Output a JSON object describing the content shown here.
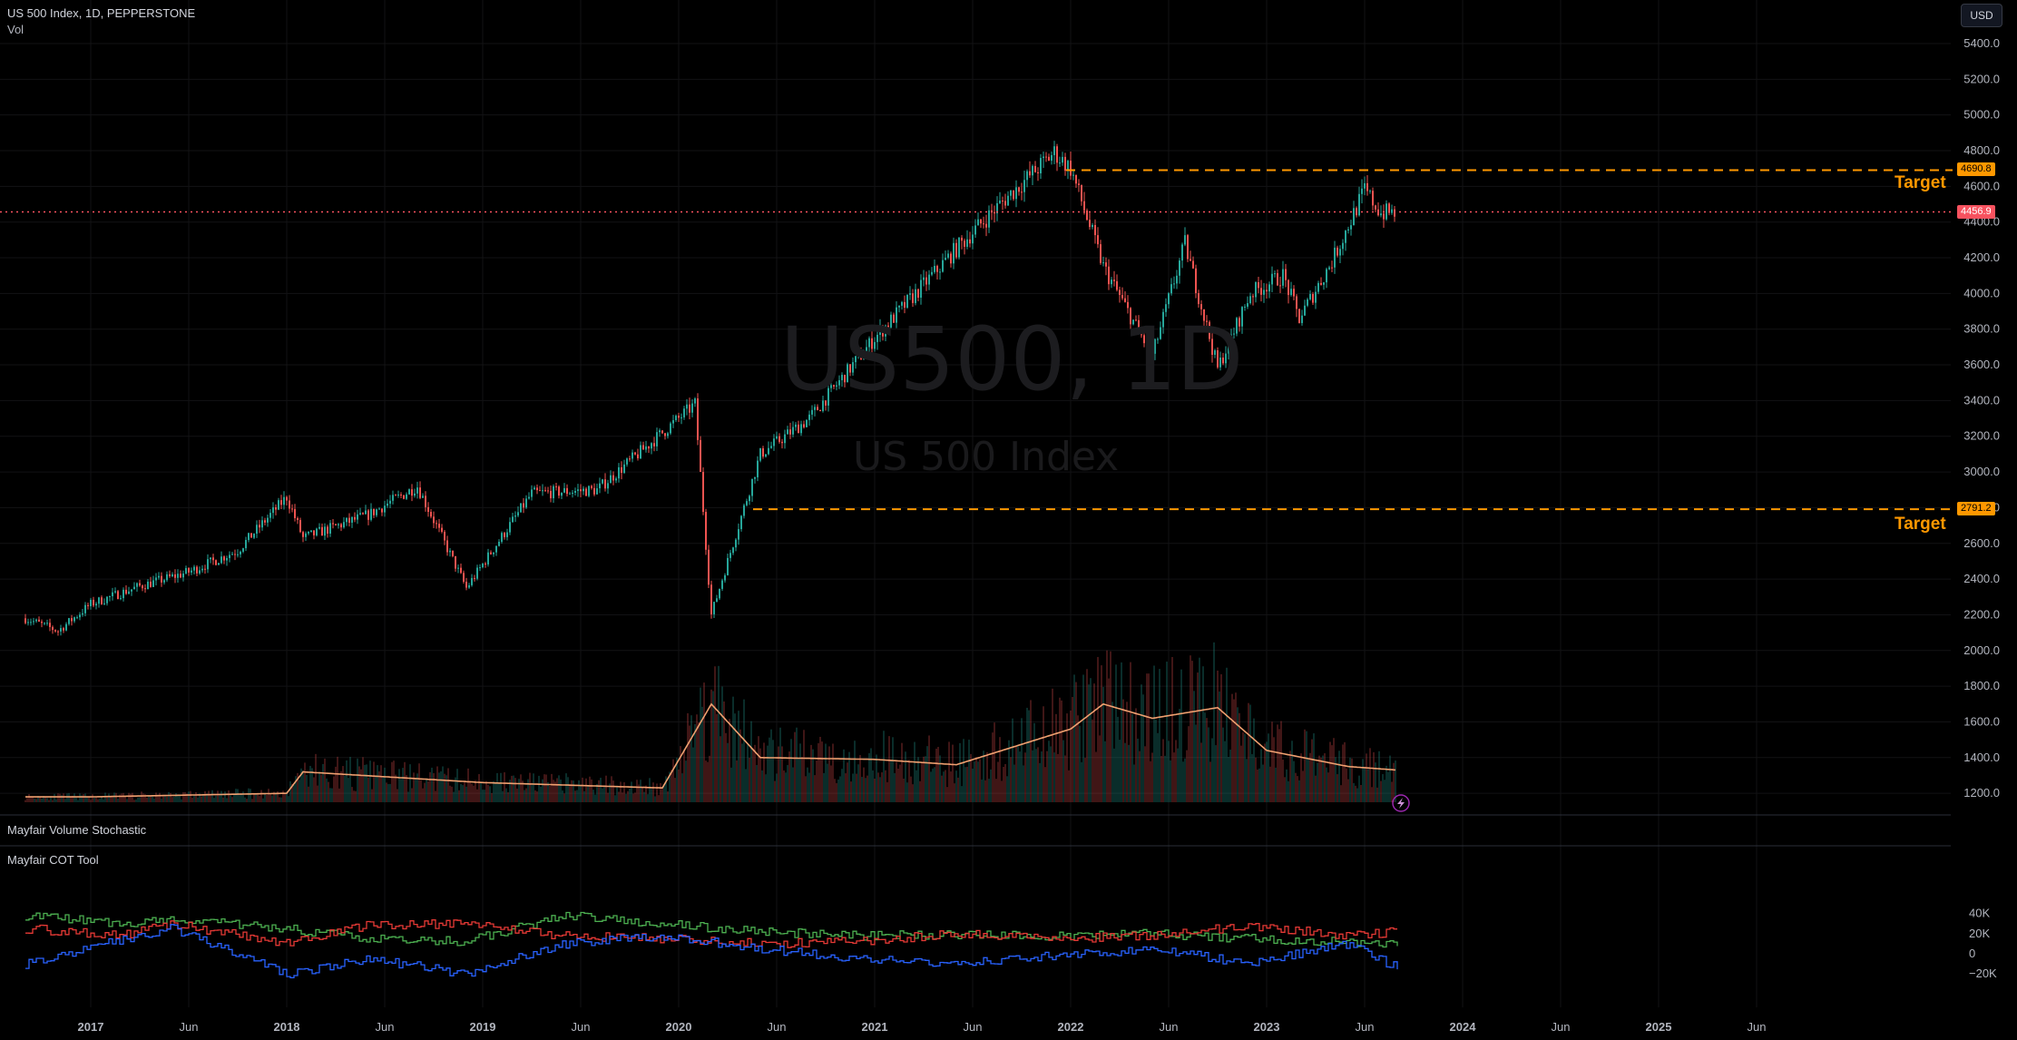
{
  "header": {
    "symbol_line": "US 500 Index, 1D, PEPPERSTONE",
    "volume_label": "Vol",
    "currency": "USD"
  },
  "watermark": {
    "main": "US500, 1D",
    "sub": "US 500 Index"
  },
  "price_axis": {
    "ticks": [
      "5400.0",
      "5200.0",
      "5000.0",
      "4800.0",
      "4600.0",
      "4400.0",
      "4200.0",
      "4000.0",
      "3800.0",
      "3600.0",
      "3400.0",
      "3200.0",
      "3000.0",
      "2800.0",
      "2600.0",
      "2400.0",
      "2200.0",
      "2000.0",
      "1800.0",
      "1600.0",
      "1400.0",
      "1200.0"
    ]
  },
  "time_axis": {
    "ticks": [
      "2017",
      "Jun",
      "2018",
      "Jun",
      "2019",
      "Jun",
      "2020",
      "Jun",
      "2021",
      "Jun",
      "2022",
      "Jun",
      "2023",
      "Jun",
      "2024",
      "Jun",
      "2025",
      "Jun"
    ]
  },
  "levels": {
    "upper_target": {
      "value": 4690.8,
      "label": "4690.8",
      "text": "Target"
    },
    "lower_target": {
      "value": 2791.2,
      "label": "2791.2",
      "text": "Target"
    },
    "current_price": {
      "value": 4456.9,
      "label": "4456.9"
    }
  },
  "panes": {
    "volume_stochastic": {
      "title": "Mayfair Volume Stochastic"
    },
    "cot": {
      "title": "Mayfair COT Tool",
      "ticks": [
        "40K",
        "20K",
        "0",
        "−20K"
      ]
    }
  },
  "colors": {
    "up": "#26a69a",
    "down": "#ef5350",
    "target": "#ff9800",
    "price_line": "#f7525f",
    "volume_ma": "#f0a070",
    "cot_green": "#4caf50",
    "cot_red": "#e53935",
    "cot_blue": "#2962ff"
  },
  "chart_data": [
    {
      "type": "line",
      "title": "US 500 Index, 1D, PEPPERSTONE",
      "x": [
        "2016-09",
        "2016-11",
        "2017-01",
        "2017-04",
        "2017-07",
        "2017-10",
        "2018-01",
        "2018-02",
        "2018-06",
        "2018-09",
        "2018-12",
        "2019-04",
        "2019-08",
        "2019-12",
        "2020-02",
        "2020-03",
        "2020-06",
        "2020-09",
        "2021-01",
        "2021-06",
        "2021-09",
        "2021-12",
        "2022-01",
        "2022-03",
        "2022-06",
        "2022-08",
        "2022-10",
        "2022-12",
        "2023-02",
        "2023-03",
        "2023-05",
        "2023-07",
        "2023-08",
        "2023-09"
      ],
      "values": [
        2180,
        2110,
        2260,
        2360,
        2440,
        2560,
        2860,
        2630,
        2760,
        2920,
        2350,
        2880,
        2900,
        3220,
        3380,
        2200,
        3100,
        3300,
        3750,
        4250,
        4530,
        4790,
        4700,
        4150,
        3650,
        4280,
        3580,
        4000,
        4100,
        3860,
        4180,
        4580,
        4450,
        4456.9
      ],
      "ylim": [
        1150,
        5500
      ]
    },
    {
      "type": "bar",
      "name": "Volume",
      "x": [
        "2017",
        "2018",
        "2018-02",
        "2019",
        "2019-12",
        "2020-03",
        "2020-06",
        "2021",
        "2021-06",
        "2022",
        "2022-03",
        "2022-06",
        "2022-10",
        "2023",
        "2023-06",
        "2023-09"
      ],
      "values": [
        1180,
        1200,
        1320,
        1260,
        1230,
        1700,
        1400,
        1390,
        1360,
        1560,
        1700,
        1620,
        1680,
        1440,
        1350,
        1330
      ]
    },
    {
      "type": "line",
      "title": "Mayfair COT Tool",
      "x": [
        "2016-09",
        "2017-03",
        "2017-06",
        "2018-01",
        "2018-06",
        "2018-12",
        "2019-06",
        "2019-12",
        "2020-06",
        "2020-12",
        "2021-06",
        "2021-12",
        "2022-06",
        "2022-12",
        "2023-06",
        "2023-09"
      ],
      "series": [
        {
          "values": [
            38000,
            30000,
            35000,
            25000,
            15000,
            12000,
            38000,
            30000,
            22000,
            18000,
            19000,
            17000,
            20000,
            15000,
            12000,
            10000
          ]
        },
        {
          "values": [
            25000,
            18000,
            30000,
            10000,
            28000,
            30000,
            18000,
            15000,
            10000,
            12000,
            20000,
            15000,
            18000,
            28000,
            18000,
            22000
          ]
        },
        {
          "values": [
            -10000,
            15000,
            25000,
            -20000,
            -5000,
            -20000,
            10000,
            18000,
            5000,
            -5000,
            -10000,
            -2000,
            5000,
            -10000,
            10000,
            -14000
          ]
        }
      ],
      "ylim": [
        -25000,
        45000
      ]
    }
  ]
}
